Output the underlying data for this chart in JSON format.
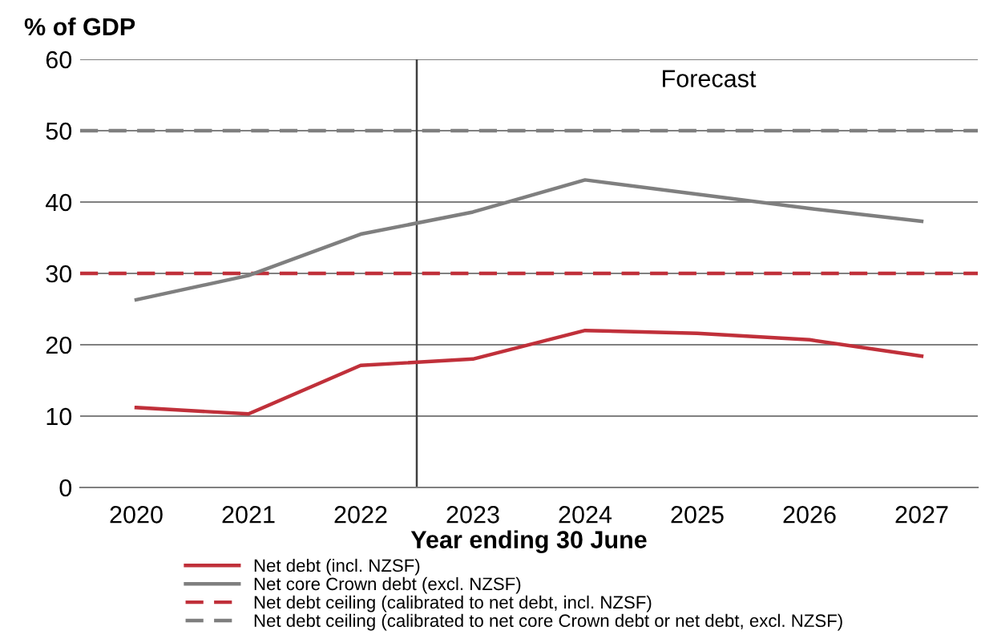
{
  "chart_data": {
    "type": "line",
    "ylabel": "% of GDP",
    "xlabel": "Year ending 30 June",
    "x": [
      2020,
      2021,
      2022,
      2023,
      2024,
      2025,
      2026,
      2027
    ],
    "xlim": [
      2019.5,
      2027.5
    ],
    "xticks": [
      2020,
      2021,
      2022,
      2023,
      2024,
      2025,
      2026,
      2027
    ],
    "ylim": [
      0,
      60
    ],
    "yticks": [
      0,
      10,
      20,
      30,
      40,
      50,
      60
    ],
    "grid": "y",
    "legend": "bottom",
    "series": [
      {
        "name": "Net debt (incl. NZSF)",
        "color": "#c0303a",
        "values": [
          11.2,
          10.3,
          17.1,
          18.0,
          22.0,
          21.6,
          20.7,
          18.4
        ]
      },
      {
        "name": "Net core Crown debt (excl. NZSF)",
        "color": "#7f7f7f",
        "values": [
          26.3,
          29.7,
          35.5,
          38.6,
          43.1,
          41.1,
          39.1,
          37.3
        ]
      }
    ],
    "ref_lines": [
      {
        "axis": "y",
        "value": 30,
        "label": "Net debt ceiling (calibrated to net debt, incl. NZSF)",
        "color": "#c0303a",
        "line_style": "dashed"
      },
      {
        "axis": "y",
        "value": 50,
        "label": "Net debt ceiling (calibrated to net core Crown debt or net debt, excl. NZSF)",
        "color": "#7f7f7f",
        "line_style": "dashed"
      },
      {
        "axis": "x",
        "value": 2022.5,
        "color": "#404040",
        "line_style": "solid"
      }
    ],
    "annotations": [
      "Forecast"
    ]
  }
}
